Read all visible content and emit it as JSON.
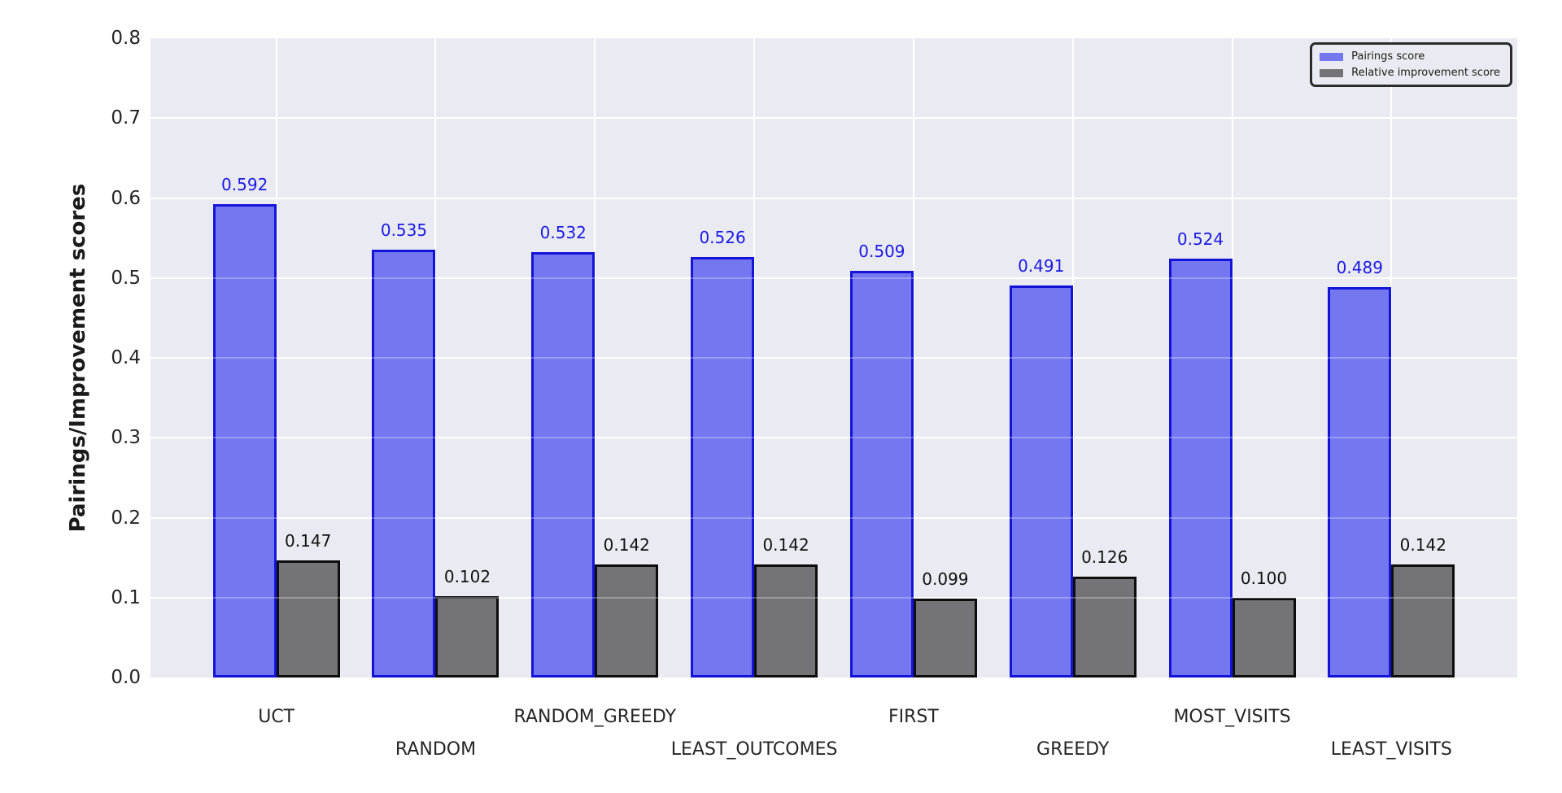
{
  "chart_data": {
    "type": "bar",
    "categories": [
      "UCT",
      "RANDOM",
      "RANDOM_GREEDY",
      "LEAST_OUTCOMES",
      "FIRST",
      "GREEDY",
      "MOST_VISITS",
      "LEAST_VISITS"
    ],
    "series": [
      {
        "name": "Pairings score",
        "values": [
          0.592,
          0.535,
          0.532,
          0.526,
          0.509,
          0.491,
          0.524,
          0.489
        ],
        "labels": [
          "0.592",
          "0.535",
          "0.532",
          "0.526",
          "0.509",
          "0.491",
          "0.524",
          "0.489"
        ],
        "fill": "#7477F0",
        "edge": "#1414D8",
        "label_color": "#1A1AE6"
      },
      {
        "name": "Relative improvement score",
        "values": [
          0.147,
          0.102,
          0.142,
          0.142,
          0.099,
          0.126,
          0.1,
          0.142
        ],
        "labels": [
          "0.147",
          "0.102",
          "0.142",
          "0.142",
          "0.099",
          "0.126",
          "0.100",
          "0.142"
        ],
        "fill": "#747478",
        "edge": "#0D0D0D",
        "label_color": "#111111"
      }
    ],
    "title": "",
    "xlabel": "",
    "ylabel": "Pairings/Improvement scores",
    "ylim": [
      0.0,
      0.8
    ],
    "yticks": [
      "0.0",
      "0.1",
      "0.2",
      "0.3",
      "0.4",
      "0.5",
      "0.6",
      "0.7",
      "0.8"
    ],
    "grid": true,
    "plot_background": "#EAEAF2",
    "grid_color": "#FFFFFF",
    "legend_position": "upper right"
  }
}
